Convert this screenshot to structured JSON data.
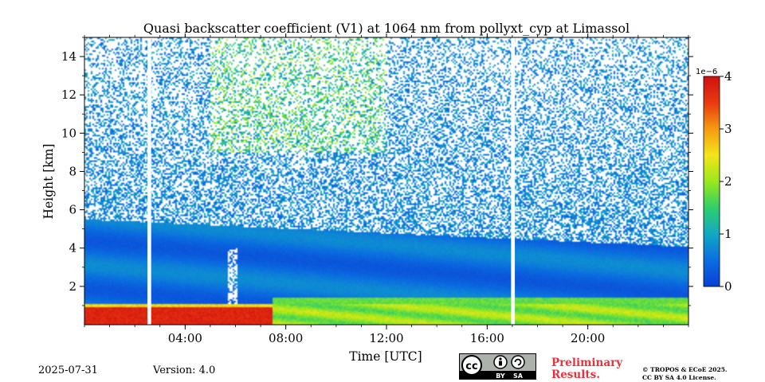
{
  "chart_data": {
    "type": "heatmap",
    "title": "Quasi backscatter coefficient (V1) at 1064 nm from pollyxt_cyp at Limassol",
    "xlabel": "Time [UTC]",
    "ylabel": "Height [km]",
    "xlim_hours": [
      0,
      24
    ],
    "ylim_km": [
      0,
      15
    ],
    "xticks": [
      {
        "hour": 4,
        "label": "04:00"
      },
      {
        "hour": 8,
        "label": "08:00"
      },
      {
        "hour": 12,
        "label": "12:00"
      },
      {
        "hour": 16,
        "label": "16:00"
      },
      {
        "hour": 20,
        "label": "20:00"
      }
    ],
    "yticks": [
      {
        "km": 2,
        "label": "2"
      },
      {
        "km": 4,
        "label": "4"
      },
      {
        "km": 6,
        "label": "6"
      },
      {
        "km": 8,
        "label": "8"
      },
      {
        "km": 10,
        "label": "10"
      },
      {
        "km": 12,
        "label": "12"
      },
      {
        "km": 14,
        "label": "14"
      }
    ],
    "colorbar": {
      "min": 0,
      "max": 4,
      "multiplier_label": "1e−6",
      "ticks": [
        {
          "value": 0,
          "label": "0"
        },
        {
          "value": 1,
          "label": "1"
        },
        {
          "value": 2,
          "label": "2"
        },
        {
          "value": 3,
          "label": "3"
        },
        {
          "value": 4,
          "label": "4"
        }
      ],
      "colors": [
        "#0a3fd6",
        "#0a6ee0",
        "#12a8c4",
        "#2ecf6a",
        "#9ae81c",
        "#f4e51a",
        "#f59a12",
        "#e83a10",
        "#d01010"
      ]
    },
    "data_gaps_hours": [
      [
        2.5,
        2.65
      ],
      [
        16.95,
        17.1
      ]
    ],
    "layers": [
      {
        "name": "surface aerosol",
        "from_km": 0.0,
        "to_km": 1.2,
        "value_approx": 2.0
      },
      {
        "name": "dense morning aerosol",
        "from_hour": 0,
        "to_hour": 7.5,
        "from_km": 0.0,
        "to_km": 1.0,
        "value_approx": 3.6
      },
      {
        "name": "elevated aerosol",
        "from_km": 1.3,
        "to_km": 5.5,
        "value_approx": 0.5
      }
    ]
  },
  "footer": {
    "date": "2025-07-31",
    "version": "Version: 4.0",
    "license_badge": {
      "top": "cc",
      "labels": [
        "BY",
        "SA"
      ]
    },
    "preliminary_line1": "Preliminary",
    "preliminary_line2": "Results.",
    "copyright_line1": "© TROPOS & ECoE 2025.",
    "copyright_line2": "CC BY SA 4.0 License."
  }
}
